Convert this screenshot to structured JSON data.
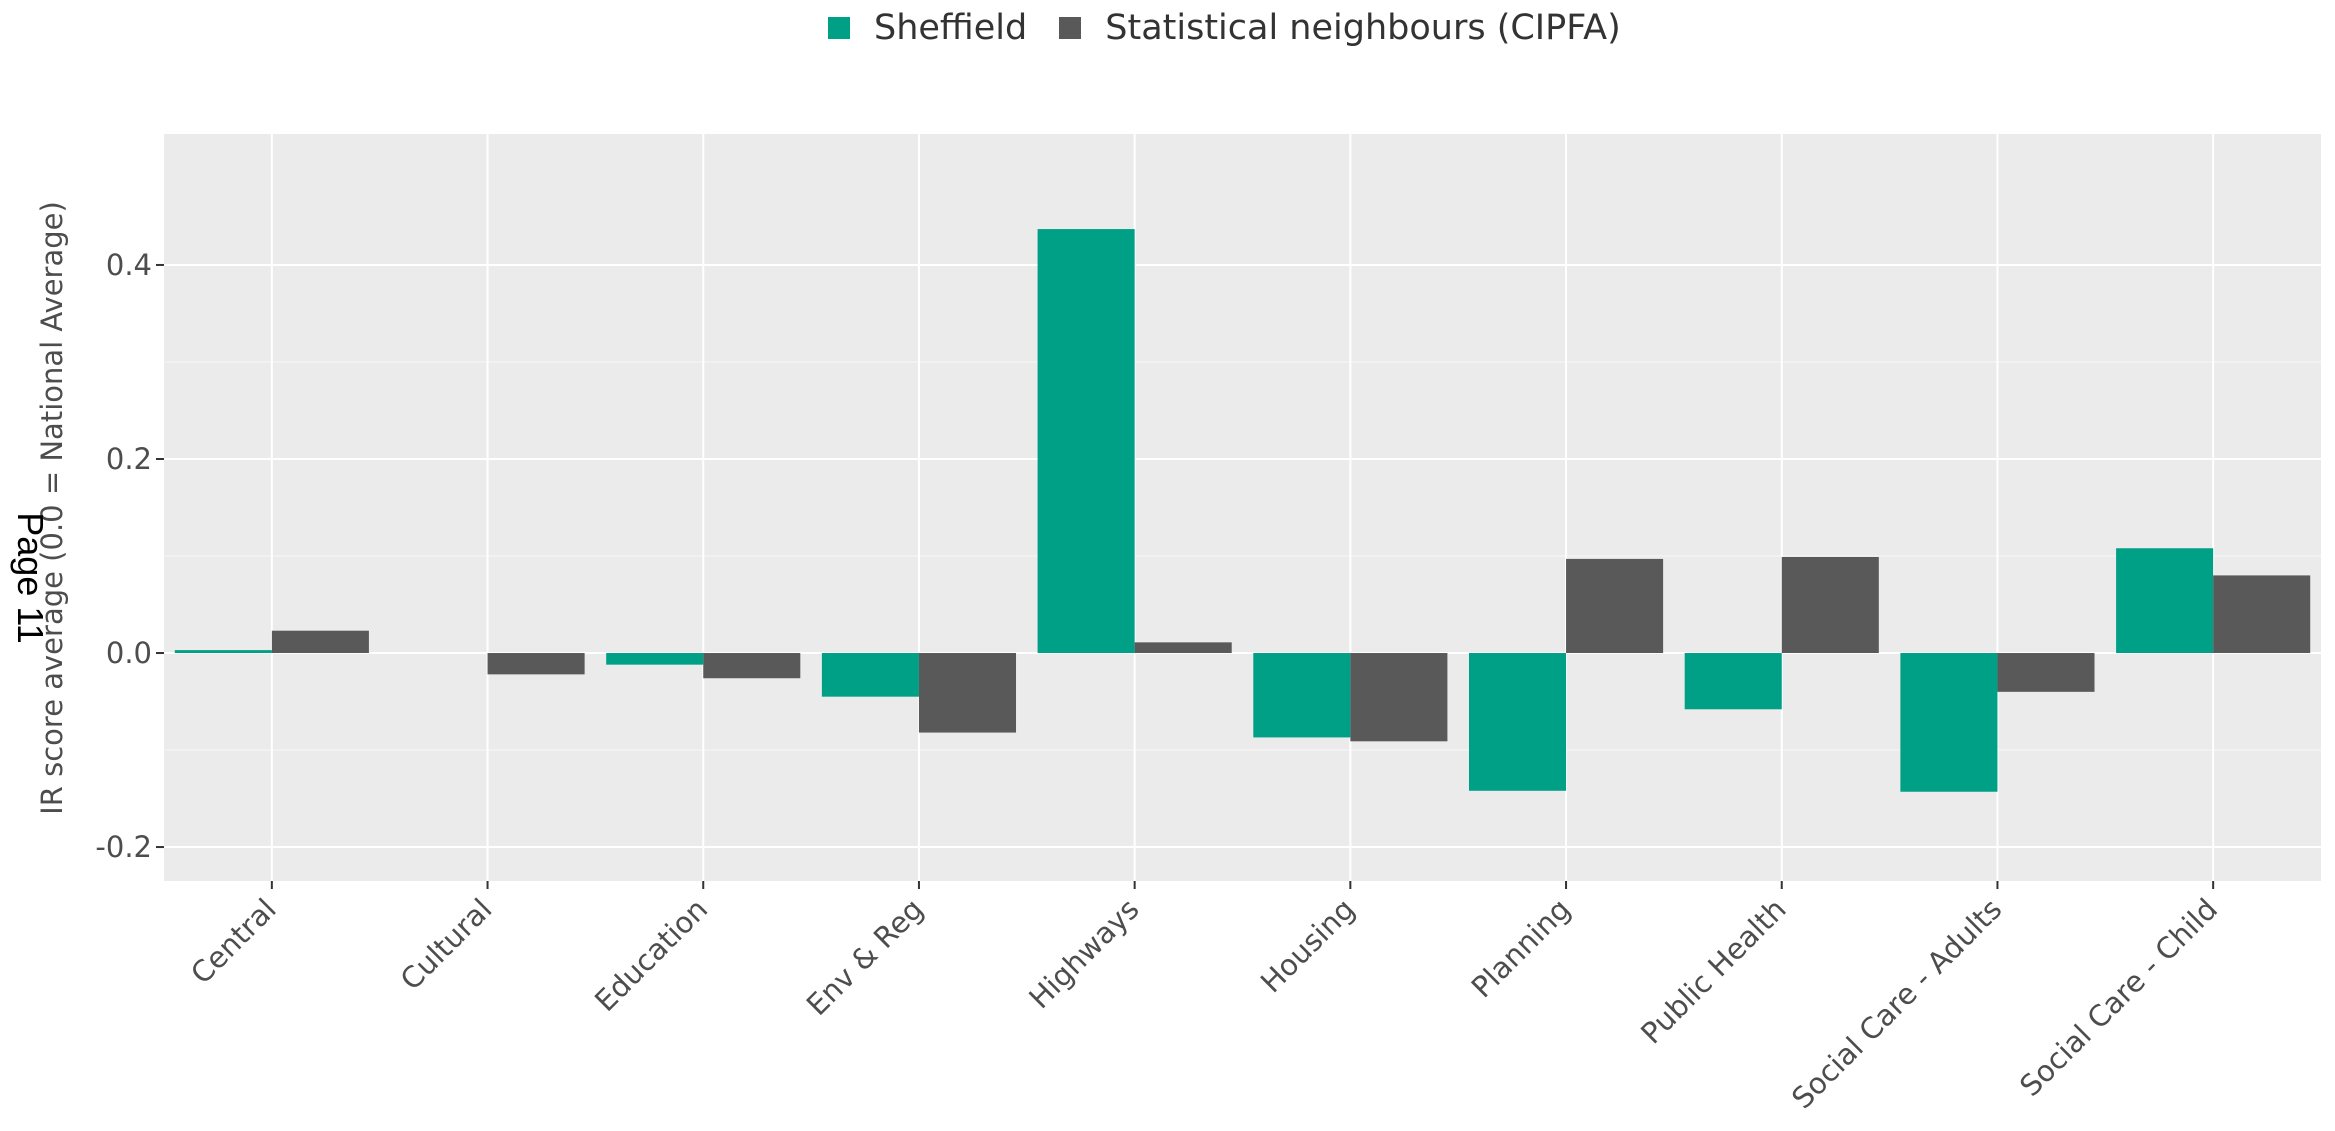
{
  "page_stamp": "Page 11",
  "colors": {
    "panel": "#ebebeb",
    "grid": "#ffffff",
    "text": "#4d4d4d",
    "legend_text": "#333333"
  },
  "legend": [
    {
      "label": "Sheffield",
      "color": "#00a087"
    },
    {
      "label": "Statistical neighbours (CIPFA)",
      "color": "#595959"
    }
  ],
  "chart_data": {
    "type": "bar",
    "title": "",
    "xlabel": "",
    "ylabel": "IR score average (0.0 = National Average)",
    "ylim": [
      -0.235,
      0.535
    ],
    "yticks": [
      -0.2,
      0.0,
      0.2,
      0.4
    ],
    "ytick_labels": [
      "-0.2",
      "0.0",
      "0.2",
      "0.4"
    ],
    "grid": true,
    "legend_position": "top",
    "categories": [
      "Central",
      "Cultural",
      "Education",
      "Env & Reg",
      "Highways",
      "Housing",
      "Planning",
      "Public Health",
      "Social Care - Adults",
      "Social Care - Child"
    ],
    "series": [
      {
        "name": "Sheffield",
        "color": "#00a087",
        "values": [
          0.003,
          0.0,
          -0.012,
          -0.045,
          0.437,
          -0.087,
          -0.142,
          -0.058,
          -0.143,
          0.108
        ]
      },
      {
        "name": "Statistical neighbours (CIPFA)",
        "color": "#595959",
        "values": [
          0.023,
          -0.022,
          -0.026,
          -0.082,
          0.011,
          -0.091,
          0.097,
          0.099,
          -0.04,
          0.08
        ]
      }
    ]
  }
}
